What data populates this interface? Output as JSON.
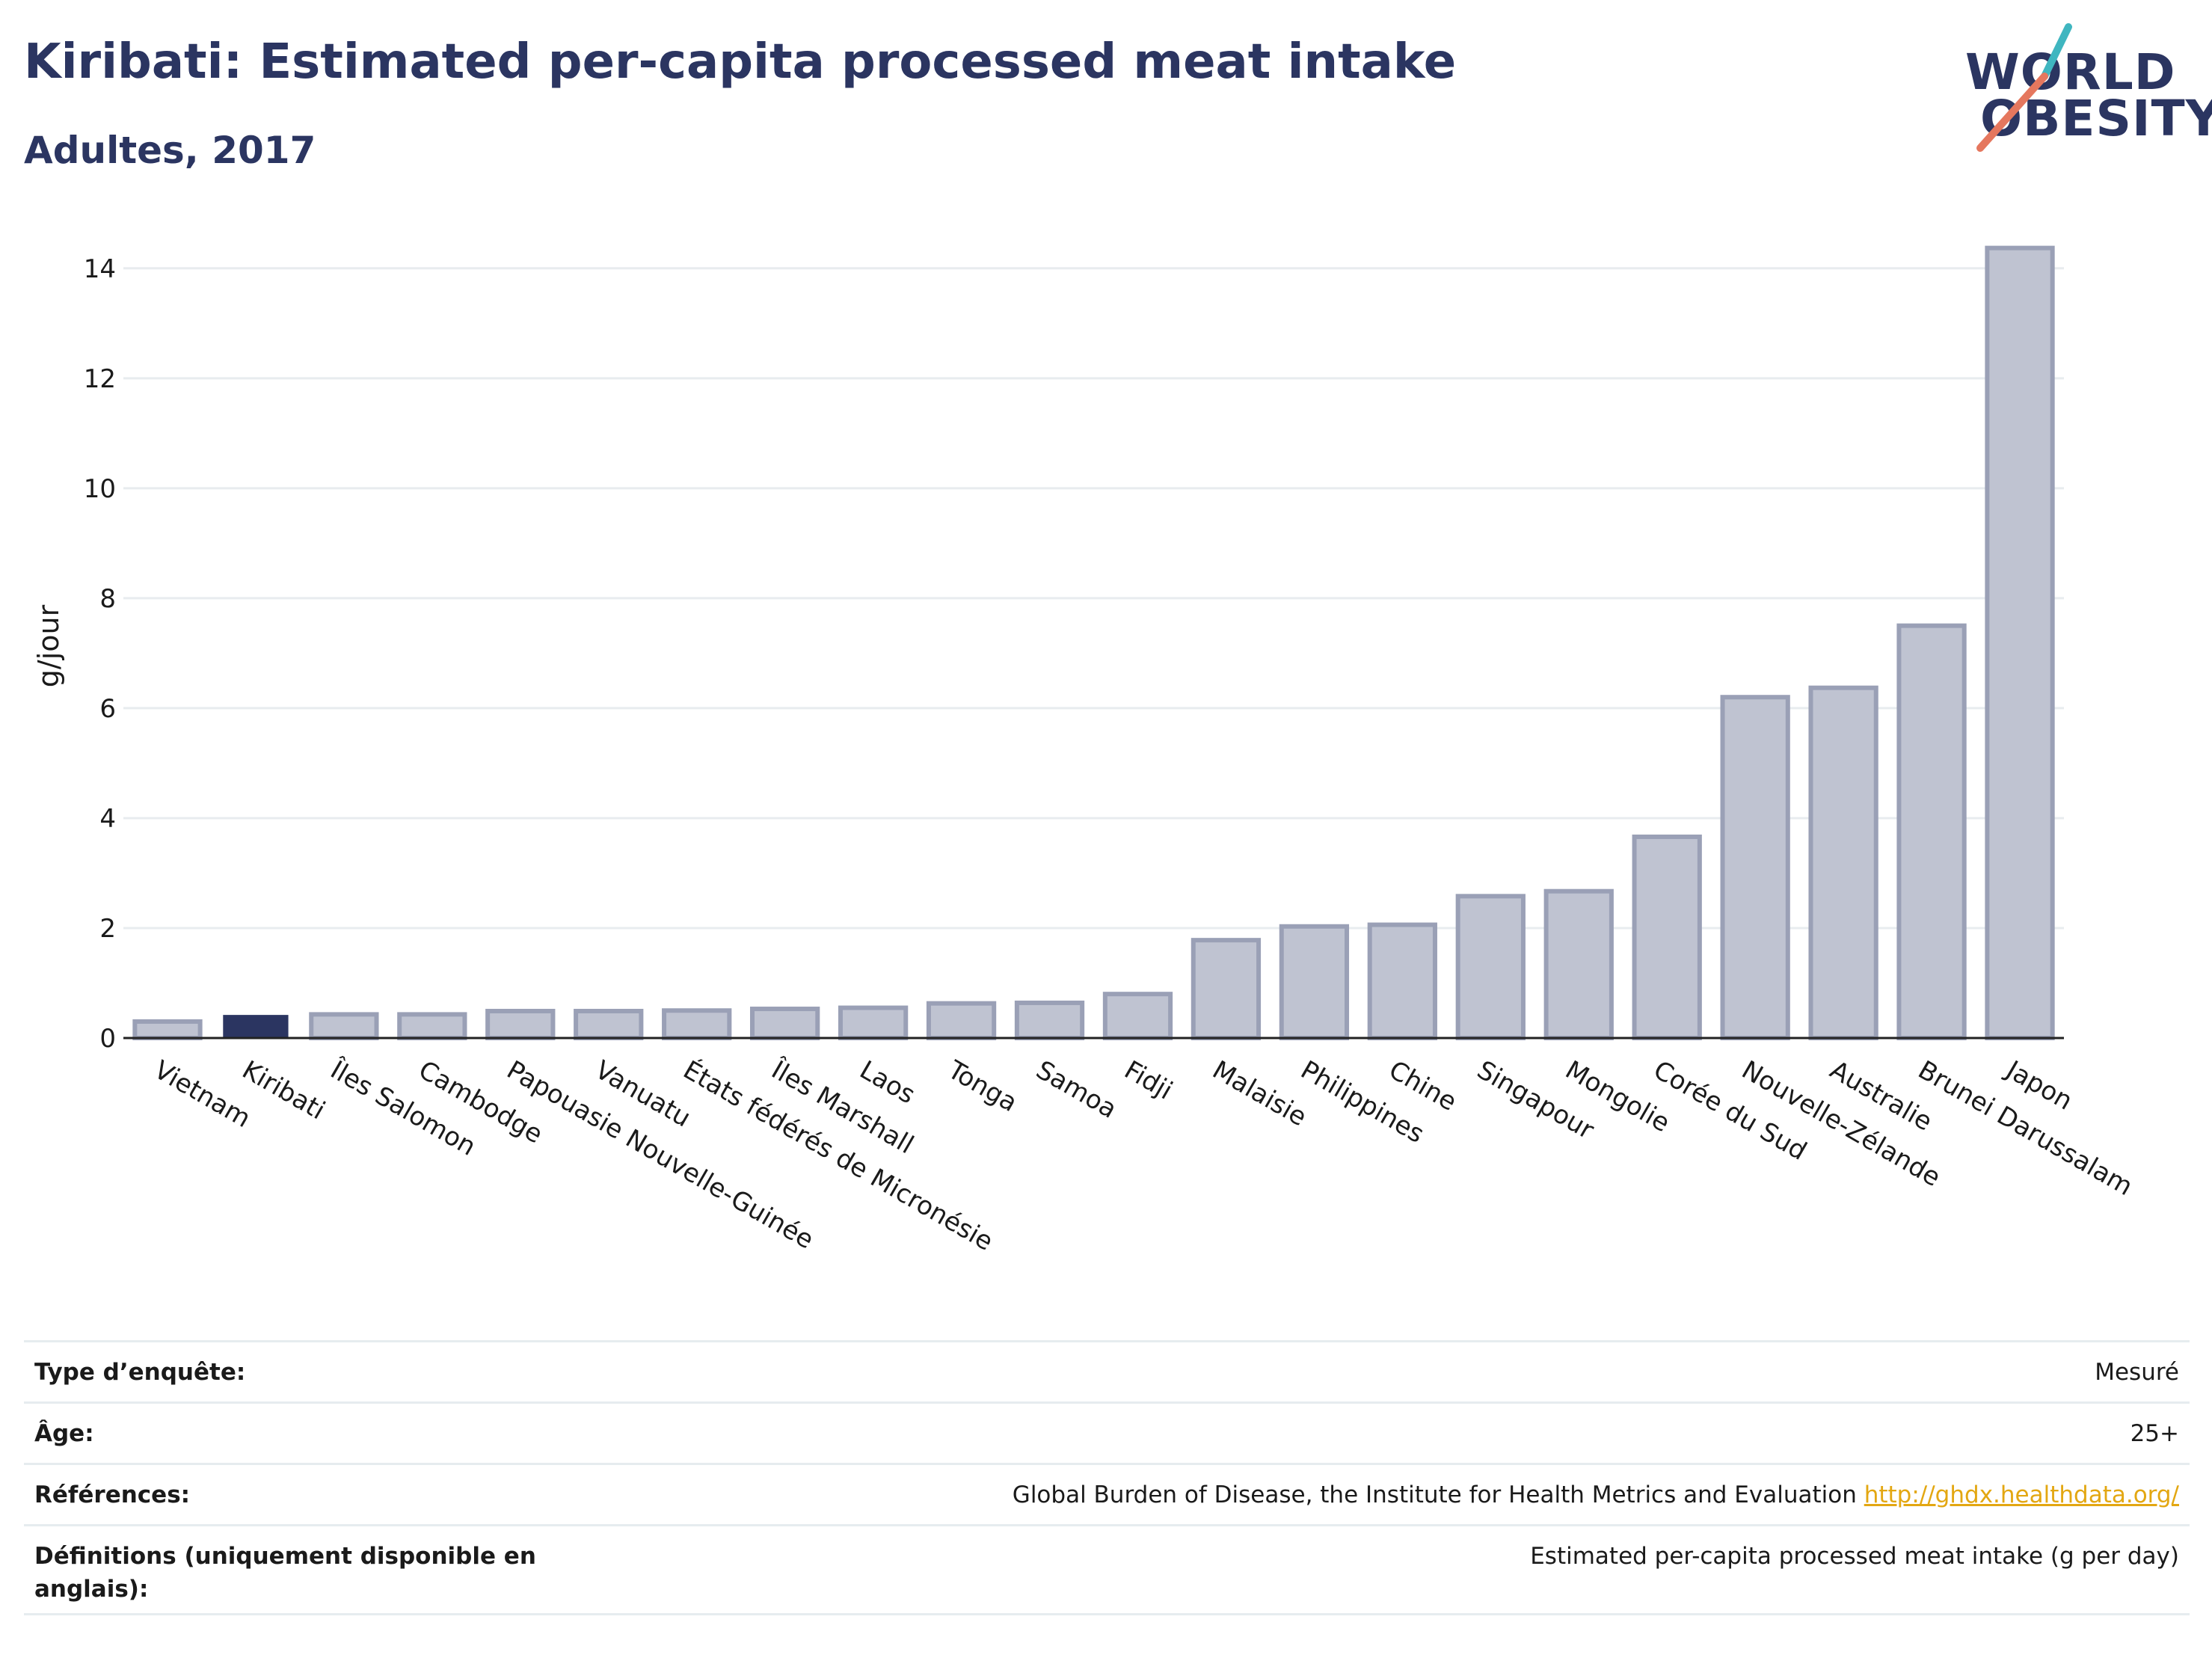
{
  "header": {
    "title": "Kiribati: Estimated per-capita processed meat intake",
    "subtitle": "Adultes, 2017"
  },
  "logo": {
    "line1": "WORLD",
    "line2": "OBESITY"
  },
  "colors": {
    "highlight": "#2b3561",
    "bar_fill": "#bfc3d1",
    "bar_stroke": "#9aa0b6",
    "grid": "#e8ecef",
    "link": "#e3a712"
  },
  "chart_data": {
    "type": "bar",
    "title": "Kiribati: Estimated per-capita processed meat intake",
    "subtitle": "Adultes, 2017",
    "ylabel": "g/jour",
    "xlabel": "",
    "ylim": [
      0,
      14.8
    ],
    "yticks": [
      0,
      2,
      4,
      6,
      8,
      10,
      12,
      14
    ],
    "grid": true,
    "highlight_category": "Kiribati",
    "categories": [
      "Vietnam",
      "Kiribati",
      "Îles Salomon",
      "Cambodge",
      "Papouasie Nouvelle-Guinée",
      "Vanuatu",
      "États fédérés de Micronésie",
      "Îles Marshall",
      "Laos",
      "Tonga",
      "Samoa",
      "Fidji",
      "Malaisie",
      "Philippines",
      "Chine",
      "Singapour",
      "Mongolie",
      "Corée du Sud",
      "Nouvelle-Zélande",
      "Australie",
      "Brunei Darussalam",
      "Japon"
    ],
    "values": [
      0.3,
      0.42,
      0.43,
      0.43,
      0.49,
      0.49,
      0.5,
      0.53,
      0.55,
      0.63,
      0.64,
      0.8,
      1.78,
      2.03,
      2.06,
      2.58,
      2.67,
      3.66,
      6.2,
      6.37,
      7.5,
      14.37
    ]
  },
  "info_table": {
    "rows": [
      {
        "label": "Type d’enquête:",
        "value": "Mesuré"
      },
      {
        "label": "Âge:",
        "value": "25+"
      },
      {
        "label": "Références:",
        "value": "Global Burden of Disease, the Institute for Health Metrics and Evaluation",
        "link": "http://ghdx.healthdata.org/"
      },
      {
        "label": "Définitions (uniquement disponible en anglais):",
        "value": "Estimated per-capita processed meat intake (g per day)"
      }
    ]
  }
}
